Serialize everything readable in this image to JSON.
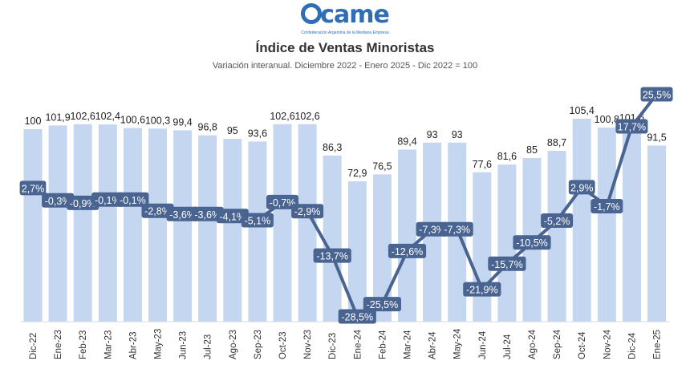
{
  "header": {
    "logo_text": "CAME",
    "logo_subtitle": "Confederación Argentina de la Mediana Empresa",
    "title": "Índice de Ventas Minoristas",
    "subtitle": "Variación interanual. Diciembre 2022 - Enero 2025 - Dic 2022 = 100"
  },
  "colors": {
    "bar": "#c5d6f1",
    "line": "#4a6491",
    "label_bg": "#4a6491",
    "label_text": "#ffffff",
    "logo": "#2f6db5"
  },
  "chart_data": {
    "type": "bar",
    "categories": [
      "Dic-22",
      "Ene-23",
      "Feb-23",
      "Mar-23",
      "Abr-23",
      "May-23",
      "Jun-23",
      "Jul-23",
      "Ago-23",
      "Sep-23",
      "Oct-23",
      "Nov-23",
      "Dic-23",
      "Ene-24",
      "Feb-24",
      "Mar-24",
      "Abr-24",
      "May-24",
      "Jun-24",
      "Jul-24",
      "Ago-24",
      "Sep-24",
      "Oct-24",
      "Nov-24",
      "Dic-24",
      "Ene-25"
    ],
    "series": [
      {
        "type": "bar",
        "values": [
          100,
          101.9,
          102.6,
          102.4,
          100.6,
          100.3,
          99.4,
          96.8,
          95,
          93.6,
          102.6,
          102.6,
          86.3,
          72.9,
          76.5,
          89.4,
          93,
          93,
          77.6,
          81.6,
          85,
          88.7,
          105.4,
          100.8,
          101.6,
          91.5
        ],
        "labels": [
          "100",
          "101,9",
          "102,6",
          "102,4",
          "100,6",
          "100,3",
          "99,4",
          "96,8",
          "95",
          "93,6",
          "102,6",
          "102,6",
          "86,3",
          "72,9",
          "76,5",
          "89,4",
          "93",
          "93",
          "77,6",
          "81,6",
          "85",
          "88,7",
          "105,4",
          "100,8",
          "101,6",
          "91,5"
        ]
      },
      {
        "type": "line",
        "values": [
          2.7,
          -0.3,
          -0.9,
          -0.1,
          -0.1,
          -2.8,
          -3.6,
          -3.6,
          -4.1,
          -5.1,
          -0.7,
          -2.9,
          -13.7,
          -28.5,
          -25.5,
          -12.6,
          -7.3,
          -7.3,
          -21.9,
          -15.7,
          -10.5,
          -5.2,
          2.9,
          -1.7,
          17.7,
          25.5
        ],
        "labels": [
          "2,7%",
          "-0,3%",
          "-0,9%",
          "-0,1%",
          "-0,1%",
          "-2,8%",
          "-3,6%",
          "-3,6%",
          "-4,1%",
          "-5,1%",
          "-0,7%",
          "-2,9%",
          "-13,7%",
          "-28,5%",
          "-25,5%",
          "-12,6%",
          "-7,3%",
          "-7,3%",
          "-21,9%",
          "-15,7%",
          "-10,5%",
          "-5,2%",
          "2,9%",
          "-1,7%",
          "17,7%",
          "25,5%"
        ]
      }
    ],
    "bar_axis_range": [
      0,
      140
    ],
    "line_axis_range": [
      -35,
      30
    ],
    "grid": false,
    "legend": "none"
  }
}
